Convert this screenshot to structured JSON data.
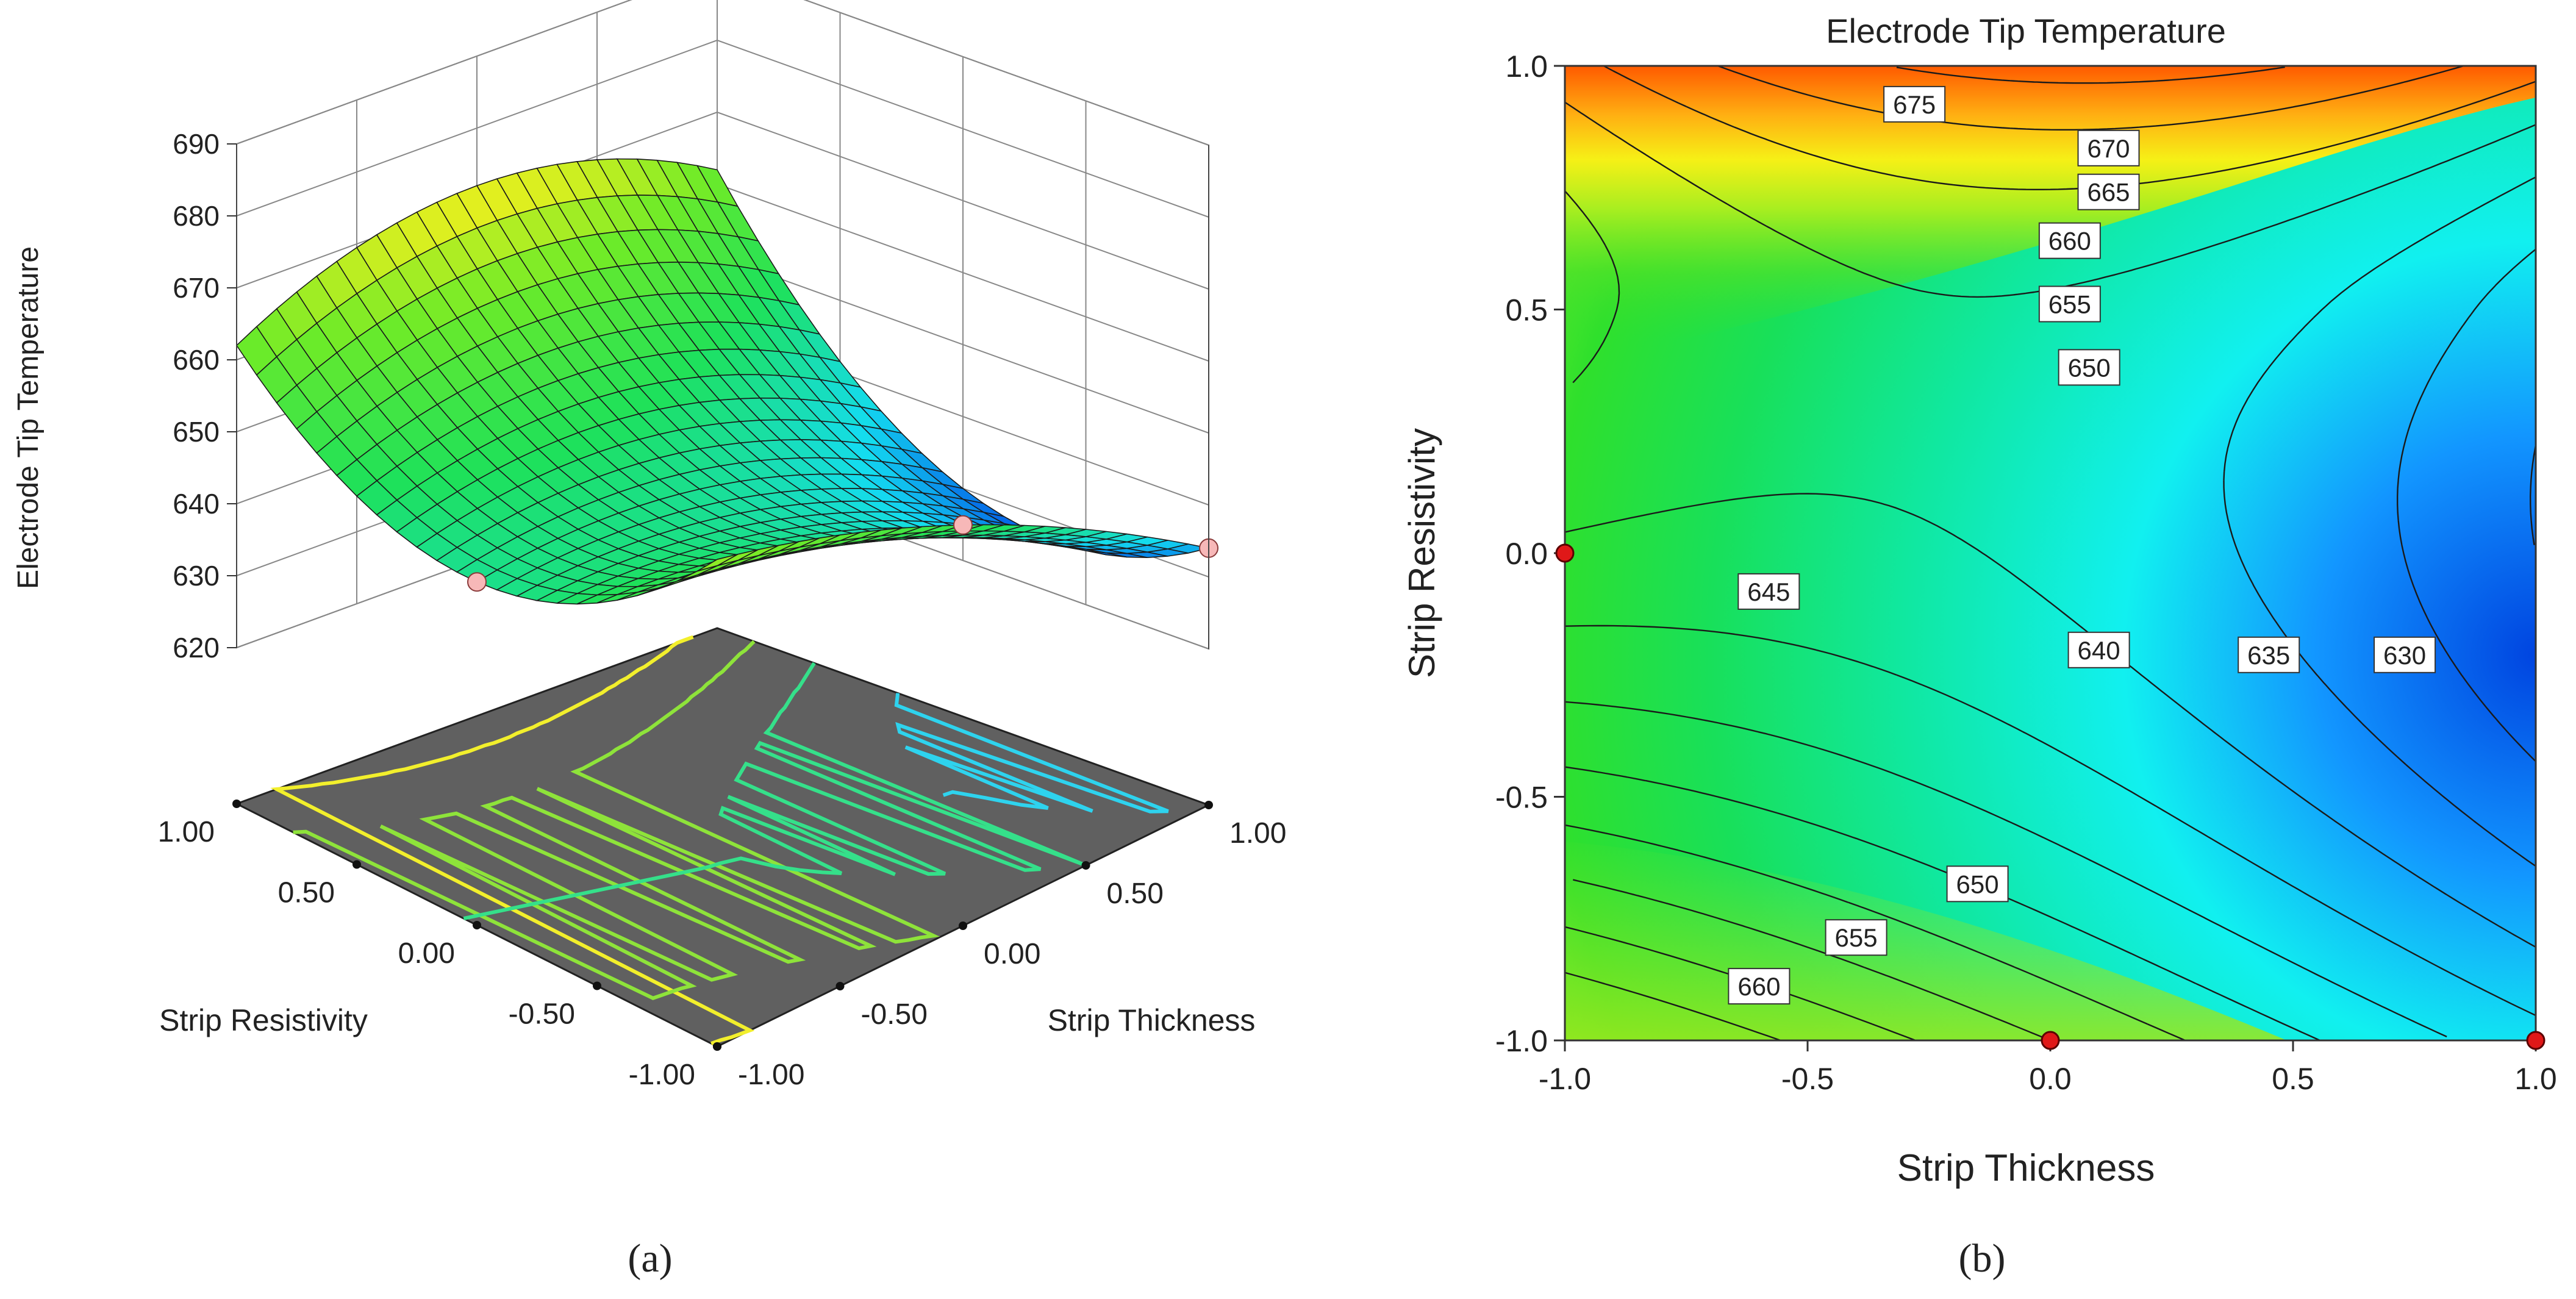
{
  "panels": {
    "a_label": "(a)",
    "b_label": "(b)"
  },
  "chart_data": [
    {
      "id": "a",
      "type": "surface3d",
      "zlabel": "Electrode Tip Temperature",
      "xlabel": "Strip Resistivity",
      "ylabel": "Strip Thickness",
      "z_ticks": [
        "620",
        "630",
        "640",
        "650",
        "660",
        "670",
        "680",
        "690"
      ],
      "x_ticks": [
        "1.00",
        "0.50",
        "0.00",
        "-0.50",
        "-1.00"
      ],
      "y_ticks": [
        "-1.00",
        "-0.50",
        "0.00",
        "0.50",
        "1.00"
      ],
      "zlim": [
        620,
        690
      ],
      "xlim": [
        -1,
        1
      ],
      "ylim": [
        -1,
        1
      ],
      "floor_contours": [
        {
          "level": 675,
          "color": "#ff7a1a"
        },
        {
          "level": 665,
          "color": "#f2ef2c"
        },
        {
          "level": 655,
          "color": "#8ee33a"
        },
        {
          "level": 645,
          "color": "#35e08a"
        },
        {
          "level": 635,
          "color": "#2ed3ee"
        }
      ],
      "design_points": [
        {
          "thickness": -1,
          "resistivity": 0
        },
        {
          "thickness": 0,
          "resistivity": -1
        },
        {
          "thickness": 1,
          "resistivity": -1
        }
      ]
    },
    {
      "id": "b",
      "type": "contour",
      "title": "Electrode Tip Temperature",
      "xlabel": "Strip Thickness",
      "ylabel": "Strip Resistivity",
      "x_ticks": [
        "-1.0",
        "-0.5",
        "0.0",
        "0.5",
        "1.0"
      ],
      "y_ticks": [
        "-1.0",
        "-0.5",
        "0.0",
        "0.5",
        "1.0"
      ],
      "xlim": [
        -1,
        1
      ],
      "ylim": [
        -1,
        1
      ],
      "contour_labels": [
        {
          "text": "675",
          "x": -0.28,
          "y": 0.92
        },
        {
          "text": "670",
          "x": 0.12,
          "y": 0.83
        },
        {
          "text": "665",
          "x": 0.12,
          "y": 0.74
        },
        {
          "text": "660",
          "x": 0.04,
          "y": 0.64
        },
        {
          "text": "655",
          "x": 0.04,
          "y": 0.51
        },
        {
          "text": "650",
          "x": 0.08,
          "y": 0.38
        },
        {
          "text": "645",
          "x": -0.58,
          "y": -0.08
        },
        {
          "text": "640",
          "x": 0.1,
          "y": -0.2
        },
        {
          "text": "635",
          "x": 0.45,
          "y": -0.21
        },
        {
          "text": "630",
          "x": 0.73,
          "y": -0.21
        },
        {
          "text": "650",
          "x": -0.15,
          "y": -0.68
        },
        {
          "text": "655",
          "x": -0.4,
          "y": -0.79
        },
        {
          "text": "660",
          "x": -0.6,
          "y": -0.89
        }
      ],
      "design_points": [
        {
          "x": -1,
          "y": 0
        },
        {
          "x": 0,
          "y": -1
        },
        {
          "x": 1,
          "y": -1
        }
      ]
    }
  ]
}
